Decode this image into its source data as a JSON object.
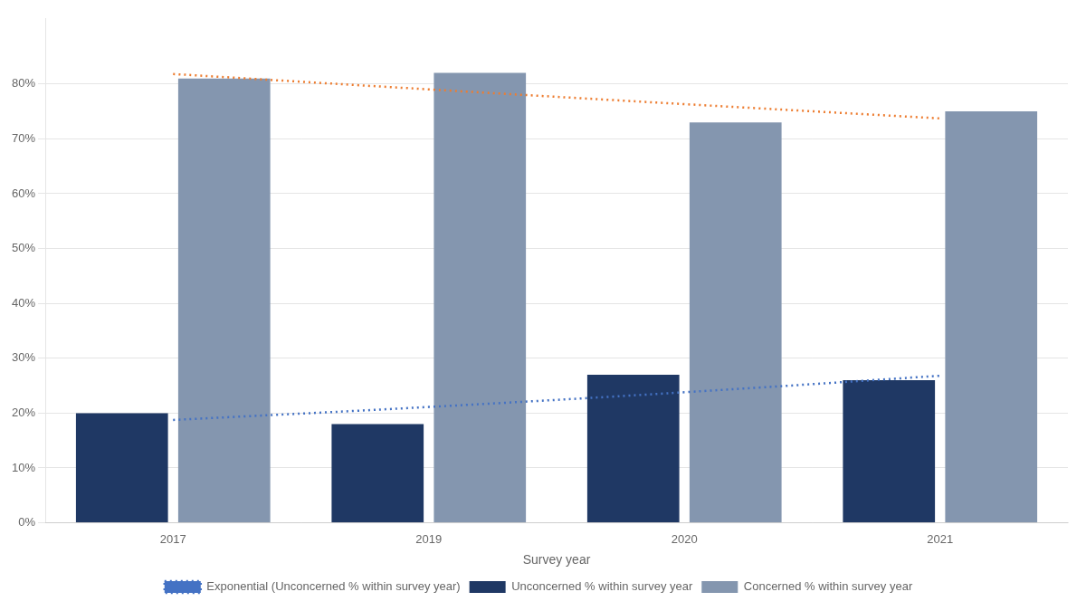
{
  "chart_data": {
    "type": "bar",
    "x_label": "Survey year",
    "categories": [
      "2017",
      "2019",
      "2020",
      "2021"
    ],
    "series": [
      {
        "name": "Unconcerned % within survey year",
        "color": "#1F3864",
        "values": [
          0.2,
          0.18,
          0.27,
          0.26
        ]
      },
      {
        "name": "Concerned % within survey year",
        "color": "#8496AF",
        "values": [
          0.81,
          0.82,
          0.73,
          0.75
        ]
      },
      {
        "name": "Exponential (Unconcerned % within survey year)",
        "type": "line",
        "line_style": "dotted",
        "color": "#4472C4",
        "values": [
          0.1875,
          0.2112,
          0.238,
          0.2681
        ]
      },
      {
        "type": "line",
        "line_style": "dotted",
        "color": "#ED7D31",
        "values": [
          0.8181,
          0.7901,
          0.7632,
          0.7372
        ]
      }
    ],
    "ylim": [
      0,
      0.92
    ],
    "yticks": [
      {
        "value": 0.0,
        "label": "0%"
      },
      {
        "value": 0.1,
        "label": "10%"
      },
      {
        "value": 0.2,
        "label": "20%"
      },
      {
        "value": 0.3,
        "label": "30%"
      },
      {
        "value": 0.4,
        "label": "40%"
      },
      {
        "value": 0.5,
        "label": "50%"
      },
      {
        "value": 0.6,
        "label": "60%"
      },
      {
        "value": 0.7,
        "label": "70%"
      },
      {
        "value": 0.8,
        "label": "80%"
      }
    ],
    "grid": true,
    "legend": "bottom"
  }
}
